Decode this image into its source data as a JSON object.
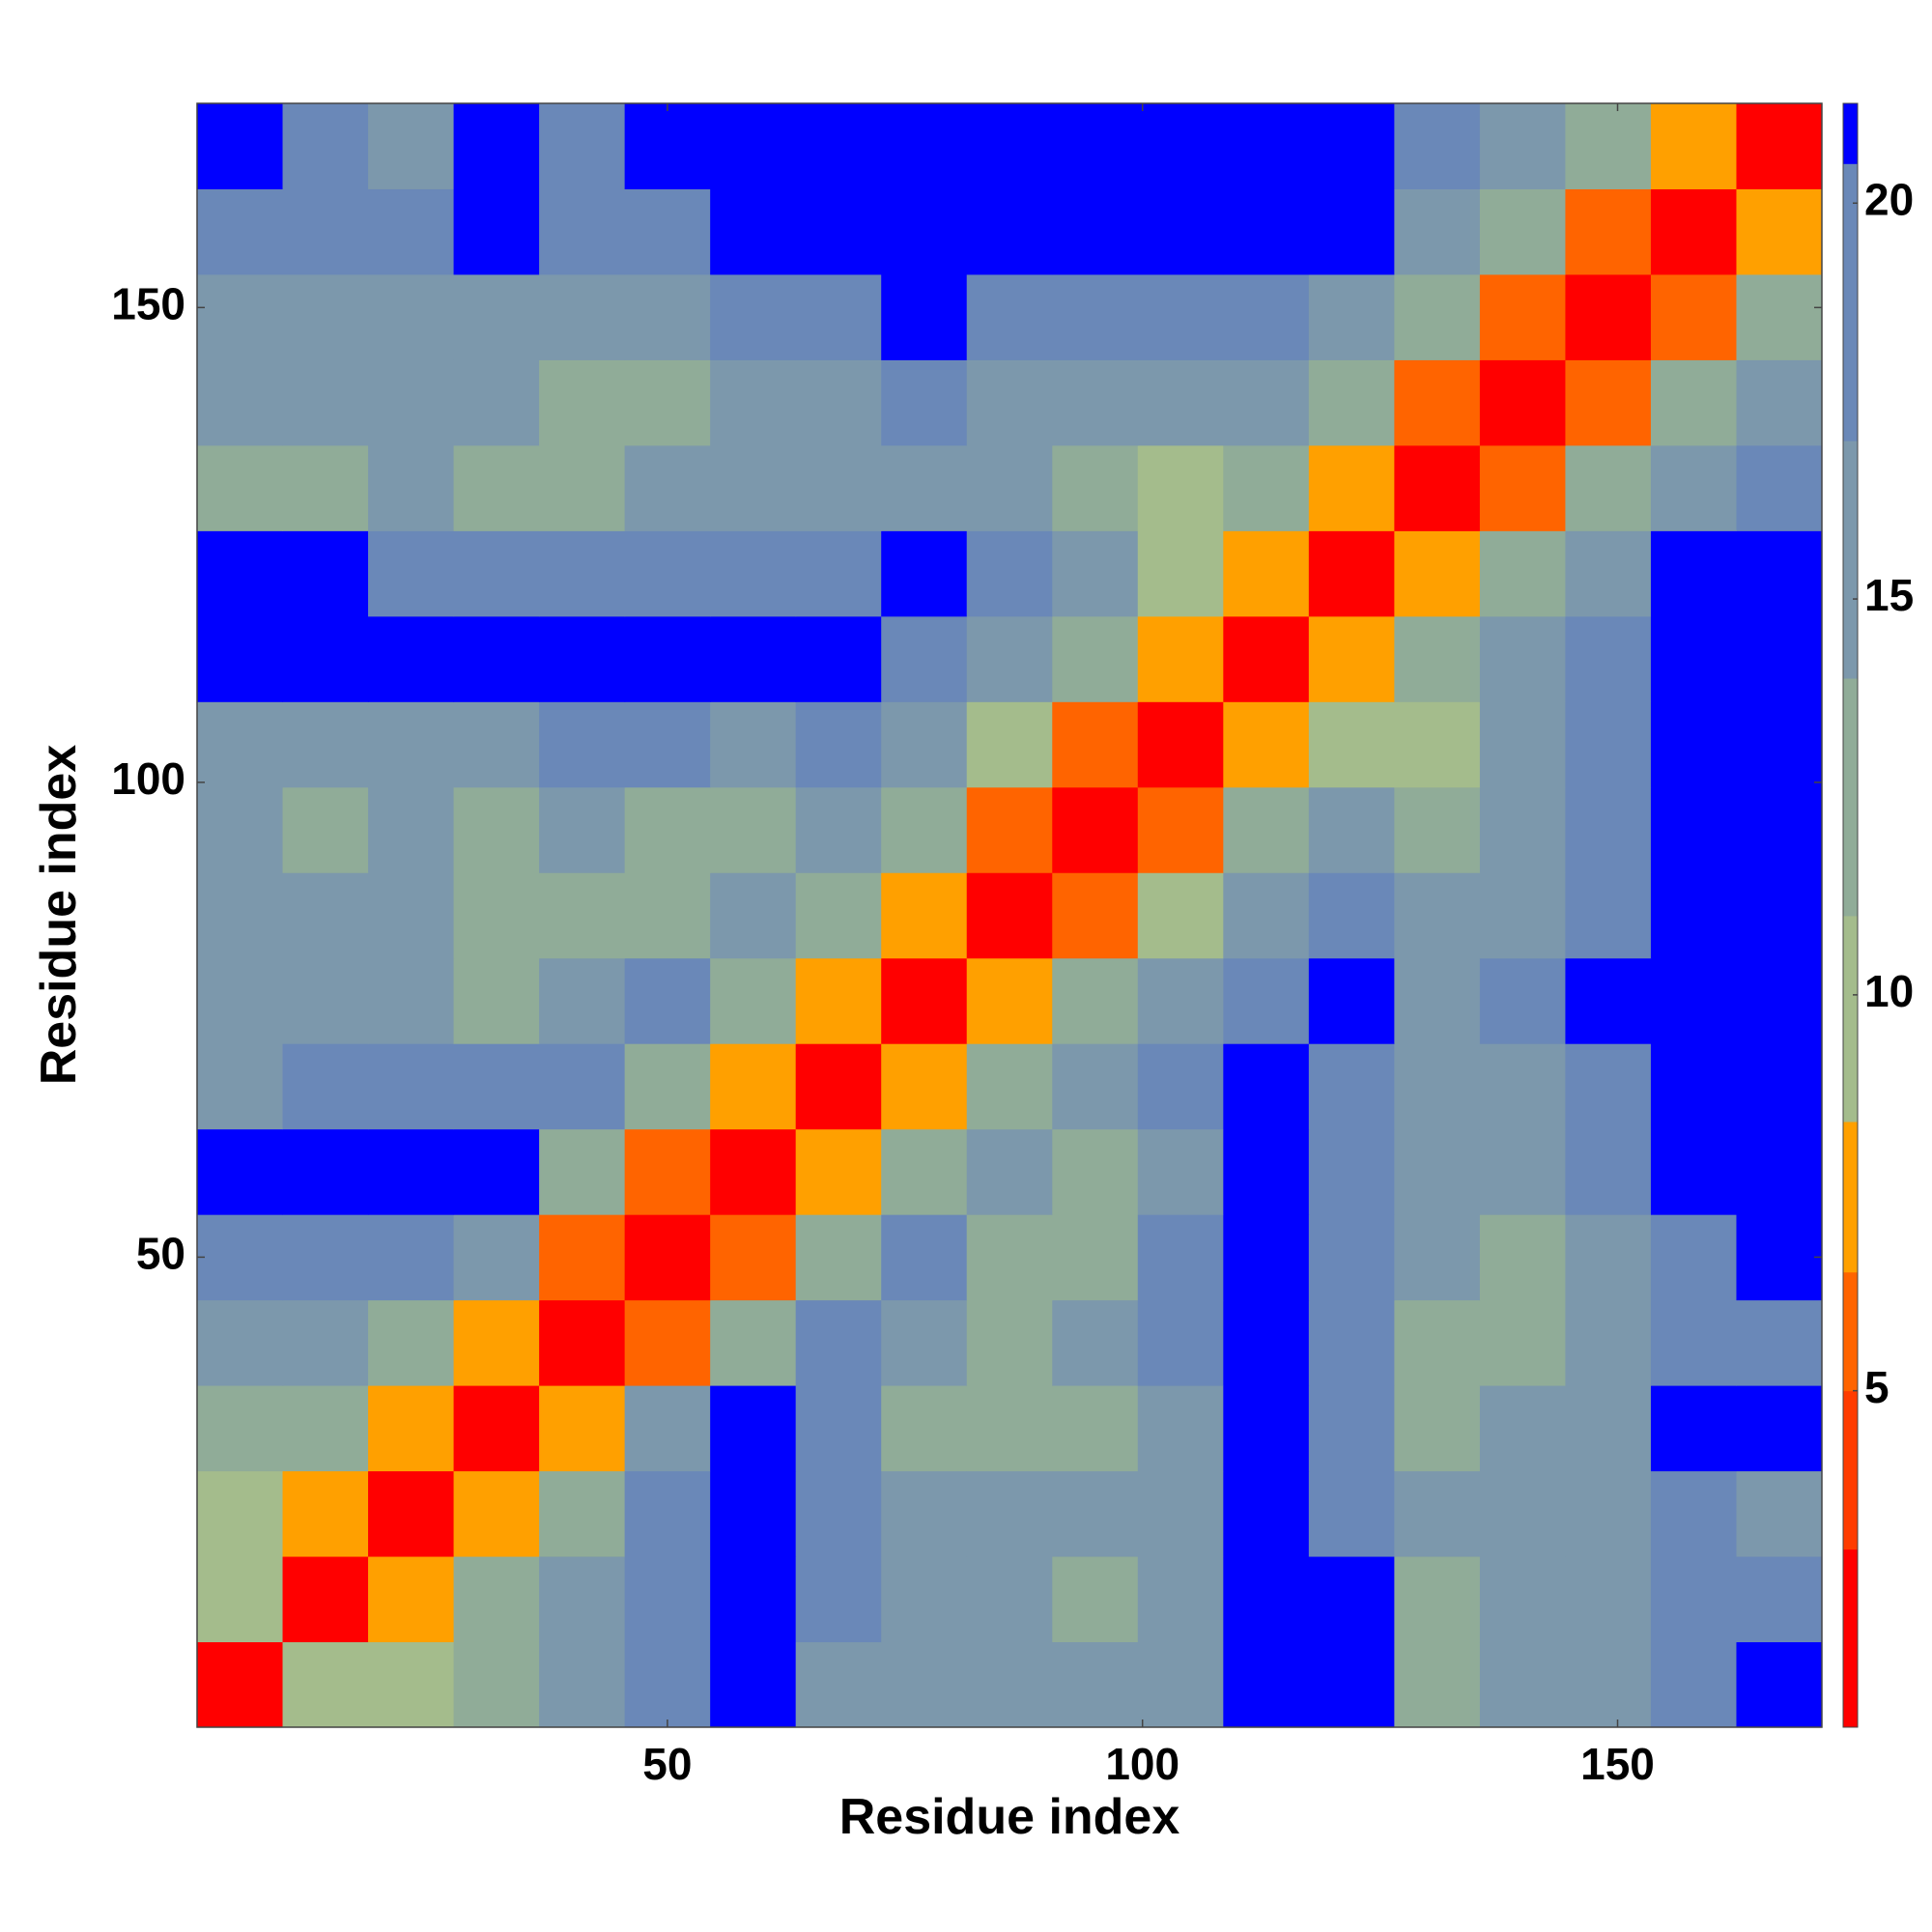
{
  "chart_data": {
    "type": "heatmap",
    "xlabel": "Residue index",
    "ylabel": "Residue index",
    "x": [
      5,
      14,
      23,
      32,
      41,
      50,
      59,
      68,
      77,
      86,
      95,
      104,
      113,
      122,
      131,
      140,
      149,
      158,
      167
    ],
    "y": [
      5,
      14,
      23,
      32,
      41,
      50,
      59,
      68,
      77,
      86,
      95,
      104,
      113,
      122,
      131,
      140,
      149,
      158,
      167
    ],
    "z": [
      [
        2,
        9,
        11,
        12,
        16,
        19,
        21,
        17,
        17,
        16,
        15,
        17,
        21,
        21,
        12,
        16,
        17,
        19,
        21
      ],
      [
        9,
        2,
        8,
        12,
        15,
        19,
        21,
        18,
        16,
        15,
        14,
        16,
        21,
        21,
        14,
        15,
        17,
        19,
        19
      ],
      [
        11,
        8,
        2,
        7,
        13,
        18,
        21,
        19,
        15,
        15,
        15,
        17,
        21,
        20,
        15,
        15,
        17,
        19,
        17
      ],
      [
        12,
        12,
        7,
        2,
        8,
        16,
        21,
        20,
        14,
        13,
        14,
        17,
        21,
        18,
        14,
        15,
        17,
        21,
        21
      ],
      [
        16,
        15,
        13,
        8,
        2,
        6,
        14,
        20,
        16,
        14,
        15,
        18,
        21,
        19,
        14,
        14,
        16,
        18,
        18
      ],
      [
        19,
        19,
        18,
        16,
        6,
        2,
        6,
        13,
        18,
        14,
        14,
        18,
        21,
        19,
        15,
        13,
        15,
        19,
        21
      ],
      [
        21,
        21,
        21,
        21,
        14,
        6,
        2,
        7,
        14,
        16,
        14,
        17,
        21,
        20,
        16,
        15,
        18,
        21,
        21
      ],
      [
        17,
        18,
        19,
        20,
        20,
        13,
        7,
        2,
        8,
        14,
        16,
        18,
        21,
        20,
        16,
        16,
        18,
        21,
        21
      ],
      [
        17,
        16,
        15,
        14,
        16,
        18,
        14,
        8,
        2,
        7,
        12,
        15,
        19,
        21,
        17,
        18,
        21,
        21,
        21
      ],
      [
        16,
        15,
        15,
        13,
        14,
        14,
        16,
        14,
        7,
        2,
        6,
        10,
        16,
        18,
        15,
        17,
        20,
        21,
        21
      ],
      [
        15,
        14,
        15,
        14,
        15,
        14,
        14,
        16,
        12,
        6,
        2,
        6,
        14,
        15,
        13,
        16,
        19,
        21,
        21
      ],
      [
        17,
        16,
        17,
        17,
        18,
        18,
        17,
        18,
        15,
        10,
        6,
        2,
        8,
        11,
        9,
        15,
        18,
        21,
        21
      ],
      [
        21,
        21,
        21,
        21,
        21,
        21,
        21,
        21,
        19,
        16,
        14,
        8,
        2,
        7,
        14,
        17,
        20,
        21,
        21
      ],
      [
        21,
        21,
        20,
        18,
        19,
        19,
        20,
        20,
        21,
        18,
        15,
        11,
        7,
        2,
        7,
        13,
        17,
        21,
        21
      ],
      [
        12,
        14,
        15,
        14,
        14,
        15,
        16,
        16,
        17,
        15,
        13,
        9,
        14,
        7,
        2,
        6,
        12,
        17,
        20
      ],
      [
        16,
        15,
        15,
        15,
        14,
        13,
        15,
        16,
        18,
        17,
        16,
        15,
        17,
        13,
        6,
        2,
        6,
        12,
        16
      ],
      [
        17,
        17,
        17,
        17,
        16,
        15,
        18,
        18,
        21,
        20,
        19,
        18,
        20,
        17,
        12,
        6,
        2,
        6,
        13
      ],
      [
        19,
        19,
        19,
        21,
        18,
        19,
        21,
        21,
        21,
        21,
        21,
        21,
        21,
        21,
        17,
        12,
        6,
        2,
        7
      ],
      [
        21,
        19,
        17,
        21,
        18,
        21,
        21,
        21,
        21,
        21,
        21,
        21,
        21,
        21,
        20,
        16,
        13,
        7,
        2
      ]
    ],
    "xlim": [
      0.5,
      171.5
    ],
    "ylim": [
      0.5,
      171.5
    ],
    "xticks": [
      50,
      100,
      150
    ],
    "yticks": [
      50,
      100,
      150
    ],
    "zlim": [
      0.75,
      21.26
    ],
    "zticks": [
      5,
      10,
      15,
      20
    ],
    "color_levels": [
      {
        "max": 3,
        "color": "#ff0000"
      },
      {
        "max": 5,
        "color": "#ff3c00"
      },
      {
        "max": 6.5,
        "color": "#ff6400"
      },
      {
        "max": 8.4,
        "color": "#ffa000"
      },
      {
        "max": 11,
        "color": "#a4bc8c"
      },
      {
        "max": 14,
        "color": "#90ac98"
      },
      {
        "max": 17,
        "color": "#7c98ac"
      },
      {
        "max": 20.5,
        "color": "#6a88b8"
      },
      {
        "max": 21.26,
        "color": "#0000ff"
      }
    ]
  }
}
